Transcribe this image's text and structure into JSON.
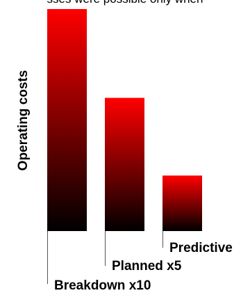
{
  "clipped_caption": "sses were possible only when",
  "chart_data": {
    "type": "bar",
    "ylabel": "Operating costs",
    "xlabel": "",
    "categories": [
      "Breakdown x10",
      "Planned x5",
      "Predictive"
    ],
    "values": [
      10,
      6,
      2.5
    ],
    "ylim": [
      0,
      10
    ],
    "grid": false,
    "legend": "none",
    "bar_gradient": [
      "#ff0000",
      "#000000"
    ],
    "label_color": "#000000"
  }
}
